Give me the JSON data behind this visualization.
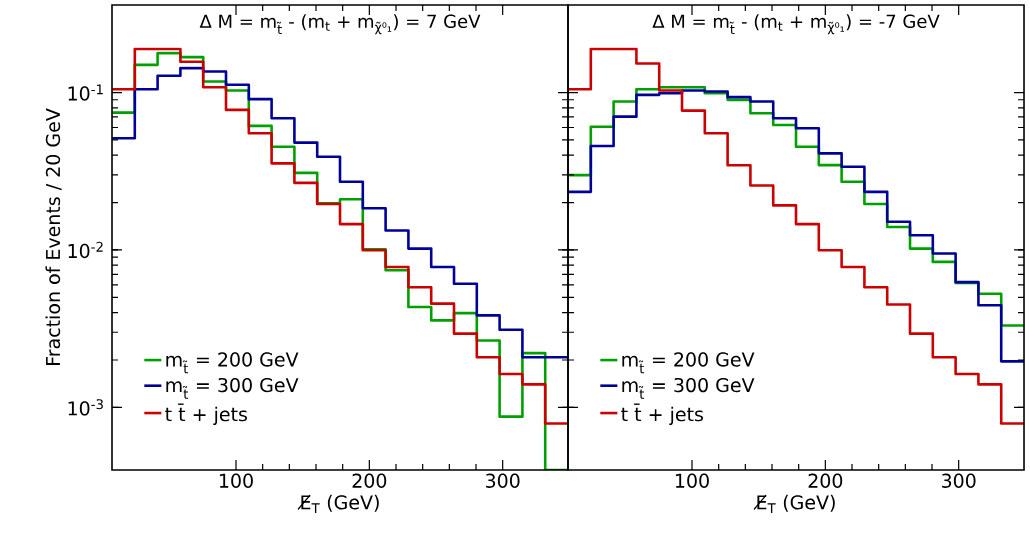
{
  "chart_data": [
    {
      "type": "histogram",
      "title": "Δ M = m$_{t̃}$ - (m$_{t}$ + m$_{χ̃⁰₁}$) = 7 GeV",
      "xlabel": "E̸$_{T}$ (GeV)",
      "ylabel": "Fraction of Events / 20 GeV",
      "bins": [
        7,
        24.1,
        41.2,
        58.3,
        75.4,
        92.5,
        109.6,
        126.7,
        143.8,
        160.9,
        178,
        195.1,
        212.2,
        229.3,
        246.4,
        263.5,
        280.6,
        297.7,
        314.8,
        331.9,
        349
      ],
      "series": [
        {
          "name": "m$_{t̃}$ = 200 GeV",
          "color": "#00a000",
          "values": [
            0.0746,
            0.15,
            0.178,
            0.168,
            0.1175,
            0.103,
            0.0614,
            0.0453,
            0.0309,
            0.0198,
            0.021,
            0.0101,
            0.00743,
            0.00434,
            0.00357,
            0.00397,
            0.00266,
            0.000873,
            0.00221,
            null
          ]
        },
        {
          "name": "m$_{t̃}$ = 300 GeV",
          "color": "#000099",
          "values": [
            0.0513,
            0.105,
            0.128,
            0.143,
            0.136,
            0.112,
            0.0908,
            0.0687,
            0.0481,
            0.0391,
            0.0271,
            0.0184,
            0.0133,
            0.0102,
            0.0078,
            0.0061,
            0.00384,
            0.00311,
            0.00208,
            0.00208
          ]
        },
        {
          "name": "t t̄ + jets",
          "color": "#cc0000",
          "values": [
            0.105,
            0.189,
            0.189,
            0.157,
            0.108,
            0.0776,
            0.0551,
            0.0355,
            0.0267,
            0.0196,
            0.0146,
            0.00995,
            0.0078,
            0.0058,
            0.00456,
            0.00294,
            0.00208,
            0.00163,
            0.0014,
            0.00079
          ]
        }
      ],
      "xlim": [
        7,
        349
      ],
      "ylim": [
        0.0004,
        0.36
      ],
      "log": "y",
      "xticks": [
        100,
        200,
        300
      ],
      "yticks": [
        {
          "value": 0.001,
          "label": "10$^{-3}$"
        },
        {
          "value": 0.01,
          "label": "10$^{-2}$"
        },
        {
          "value": 0.1,
          "label": "10$^{-1}$"
        }
      ],
      "legend": "bottom left"
    },
    {
      "type": "histogram",
      "title": "Δ M = m$_{t̃}$ - (m$_{t}$ + m$_{χ̃⁰₁}$) = -7 GeV",
      "xlabel": "E̸$_{T}$ (GeV)",
      "bins": [
        7,
        24.1,
        41.2,
        58.3,
        75.4,
        92.5,
        109.6,
        126.7,
        143.8,
        160.9,
        178,
        195.1,
        212.2,
        229.3,
        246.4,
        263.5,
        280.6,
        297.7,
        314.8,
        331.9,
        349
      ],
      "series": [
        {
          "name": "m$_{t̃}$ = 200 GeV",
          "color": "#00a000",
          "values": [
            0.0299,
            0.0607,
            0.0877,
            0.105,
            0.108,
            0.108,
            0.0991,
            0.0899,
            0.0739,
            0.0622,
            0.0453,
            0.0346,
            0.0271,
            0.0196,
            0.014,
            0.0102,
            0.0084,
            0.00617,
            0.00527,
            0.00331
          ]
        },
        {
          "name": "m$_{t̃}$ = 300 GeV",
          "color": "#000099",
          "values": [
            0.0234,
            0.0458,
            0.0703,
            0.0967,
            0.0991,
            0.103,
            0.1015,
            0.0935,
            0.0877,
            0.0687,
            0.0593,
            0.0411,
            0.0338,
            0.0234,
            0.0151,
            0.0124,
            0.0095,
            0.00625,
            0.00445,
            0.00196
          ]
        },
        {
          "name": "t t̄ + jets",
          "color": "#cc0000",
          "values": [
            0.105,
            0.189,
            0.189,
            0.153,
            0.103,
            0.0768,
            0.0551,
            0.0345,
            0.0257,
            0.0192,
            0.0146,
            0.00995,
            0.0078,
            0.0058,
            0.0045,
            0.00294,
            0.00208,
            0.00163,
            0.0014,
            0.00079
          ]
        }
      ],
      "xlim": [
        7,
        349
      ],
      "ylim": [
        0.0004,
        0.36
      ],
      "log": "y",
      "xticks": [
        100,
        200,
        300
      ],
      "yticks": [
        {
          "value": 0.001,
          "label": null
        },
        {
          "value": 0.01,
          "label": null
        },
        {
          "value": 0.1,
          "label": null
        }
      ],
      "legend": "bottom left",
      "tick_labels": "x"
    }
  ]
}
